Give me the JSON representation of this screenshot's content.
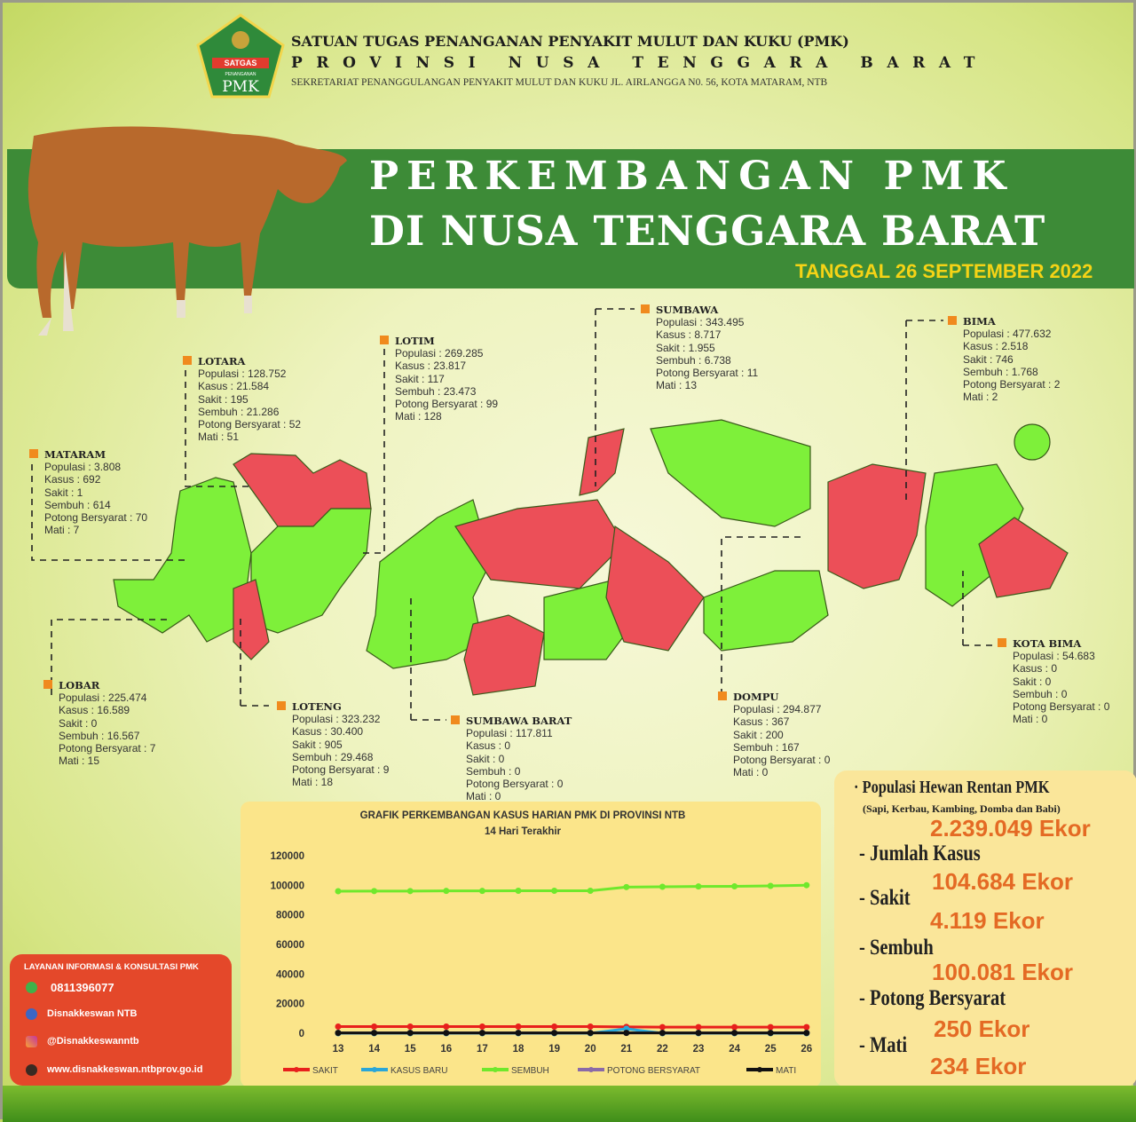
{
  "header": {
    "logo_text_top": "SATGAS",
    "logo_text_mid": "PENANGANAN",
    "logo_text_bottom": "PMK",
    "line1": "SATUAN TUGAS PENANGANAN PENYAKIT MULUT DAN KUKU (PMK)",
    "line2": "PROVINSI NUSA TENGGARA BARAT",
    "line3": "SEKRETARIAT PENANGGULANGAN PENYAKIT MULUT DAN KUKU  JL. AIRLANGGA N0. 56, KOTA MATARAM, NTB"
  },
  "banner": {
    "title1": "PERKEMBANGAN PMK",
    "title2": "DI NUSA TENGGARA BARAT",
    "date": "TANGGAL 26 SEPTEMBER 2022"
  },
  "colors": {
    "banner": "#3d8b37",
    "infected": "#ec4f58",
    "free": "#7ef03a",
    "marker": "#f08a1e",
    "value": "#e46a24",
    "contact": "#e4482a"
  },
  "regions": [
    {
      "name": "MATARAM",
      "lines": [
        "Populasi : 3.808",
        "Kasus : 692",
        "Sakit : 1",
        "Sembuh : 614",
        "Potong Bersyarat : 70",
        "Mati : 7"
      ]
    },
    {
      "name": "LOTARA",
      "lines": [
        "Populasi : 128.752",
        "Kasus : 21.584",
        "Sakit : 195",
        "Sembuh : 21.286",
        "Potong Bersyarat : 52",
        "Mati : 51"
      ]
    },
    {
      "name": "LOTIM",
      "lines": [
        "Populasi : 269.285",
        "Kasus : 23.817",
        "Sakit : 117",
        "Sembuh : 23.473",
        "Potong Bersyarat : 99",
        "Mati : 128"
      ]
    },
    {
      "name": "SUMBAWA",
      "lines": [
        "Populasi : 343.495",
        "Kasus : 8.717",
        "Sakit : 1.955",
        "Sembuh : 6.738",
        "Potong Bersyarat : 11",
        "Mati : 13"
      ]
    },
    {
      "name": "BIMA",
      "lines": [
        "Populasi : 477.632",
        "Kasus : 2.518",
        "Sakit : 746",
        "Sembuh : 1.768",
        "Potong Bersyarat : 2",
        "Mati : 2"
      ]
    },
    {
      "name": "LOBAR",
      "lines": [
        "Populasi : 225.474",
        "Kasus : 16.589",
        "Sakit : 0",
        "Sembuh : 16.567",
        "Potong Bersyarat : 7",
        "Mati : 15"
      ]
    },
    {
      "name": "LOTENG",
      "lines": [
        "Populasi : 323.232",
        "Kasus : 30.400",
        "Sakit : 905",
        "Sembuh : 29.468",
        "Potong Bersyarat : 9",
        "Mati : 18"
      ]
    },
    {
      "name": "SUMBAWA BARAT",
      "lines": [
        "Populasi : 117.811",
        "Kasus : 0",
        "Sakit : 0",
        "Sembuh : 0",
        "Potong Bersyarat : 0",
        "Mati : 0"
      ]
    },
    {
      "name": "DOMPU",
      "lines": [
        "Populasi : 294.877",
        "Kasus : 367",
        "Sakit : 200",
        "Sembuh : 167",
        "Potong Bersyarat : 0",
        "Mati : 0"
      ]
    },
    {
      "name": "KOTA BIMA",
      "lines": [
        "Populasi : 54.683",
        "Kasus : 0",
        "Sakit : 0",
        "Sembuh : 0",
        "Potong Bersyarat : 0",
        "Mati : 0"
      ]
    }
  ],
  "chart_data": {
    "type": "line",
    "title": "GRAFIK PERKEMBANGAN KASUS HARIAN PMK DI PROVINSI NTB",
    "subtitle": "14 Hari Terakhir",
    "categories": [
      "13",
      "14",
      "15",
      "16",
      "17",
      "18",
      "19",
      "20",
      "21",
      "22",
      "23",
      "24",
      "25",
      "26"
    ],
    "yticks": [
      "0",
      "20000",
      "40000",
      "60000",
      "80000",
      "100000",
      "120000"
    ],
    "ylim": [
      0,
      120000
    ],
    "grid": false,
    "legend": "bottom",
    "series": [
      {
        "name": "SAKIT",
        "color": "#e8201c",
        "values": [
          4500,
          4500,
          4500,
          4500,
          4500,
          4500,
          4500,
          4500,
          4300,
          4150,
          4150,
          4130,
          4120,
          4119
        ]
      },
      {
        "name": "KASUS BARU",
        "color": "#2aa6d8",
        "values": [
          0,
          0,
          0,
          0,
          0,
          0,
          0,
          0,
          3000,
          0,
          0,
          0,
          0,
          0
        ]
      },
      {
        "name": "SEMBUH",
        "color": "#6fe82c",
        "values": [
          96000,
          96100,
          96100,
          96200,
          96200,
          96300,
          96300,
          96300,
          98800,
          99000,
          99200,
          99300,
          99600,
          100081
        ]
      },
      {
        "name": "POTONG BERSYARAT",
        "color": "#8a6aa8",
        "values": [
          250,
          250,
          250,
          250,
          250,
          250,
          250,
          250,
          250,
          250,
          250,
          250,
          250,
          250
        ]
      },
      {
        "name": "MATI",
        "color": "#111111",
        "values": [
          230,
          230,
          230,
          230,
          232,
          232,
          232,
          233,
          233,
          233,
          234,
          234,
          234,
          234
        ]
      }
    ]
  },
  "summary": {
    "items": [
      {
        "label": "· Populasi Hewan Rentan PMK",
        "sub": "(Sapi, Kerbau, Kambing, Domba dan Babi)",
        "value": "2.239.049 Ekor"
      },
      {
        "label": "- Jumlah Kasus",
        "value": "104.684 Ekor"
      },
      {
        "label": "- Sakit",
        "value": "4.119 Ekor"
      },
      {
        "label": "- Sembuh",
        "value": "100.081 Ekor"
      },
      {
        "label": "- Potong Bersyarat",
        "value": "250 Ekor"
      },
      {
        "label": "- Mati",
        "value": "234 Ekor"
      }
    ]
  },
  "contact": {
    "title": "LAYANAN INFORMASI & KONSULTASI PMK",
    "phone": "0811396077",
    "facebook": "Disnakkeswan NTB",
    "instagram": "@Disnakkeswanntb",
    "website": "www.disnakkeswan.ntbprov.go.id"
  }
}
